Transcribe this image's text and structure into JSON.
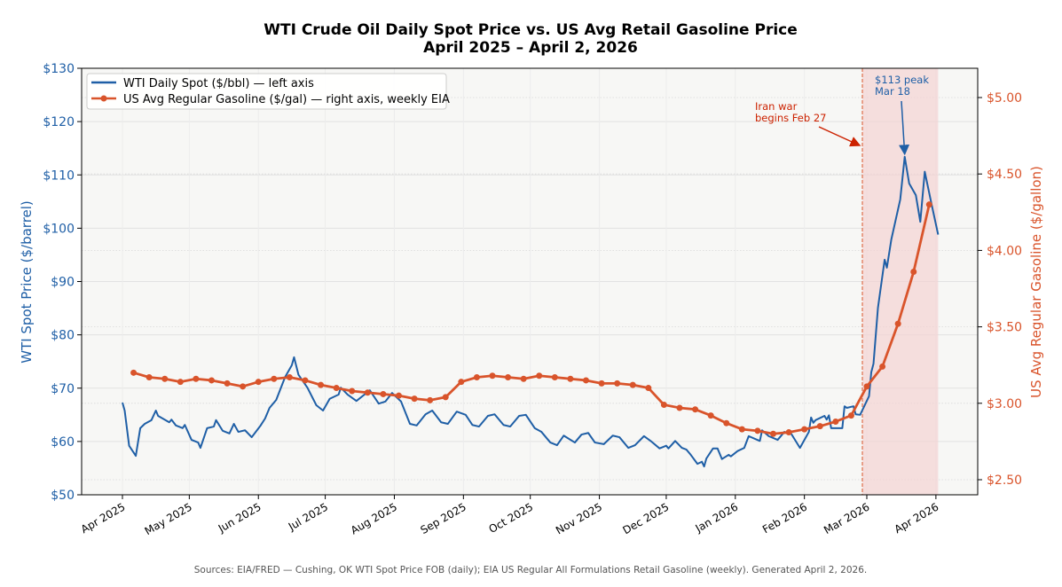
{
  "chart_data": {
    "type": "line",
    "title_line1": "WTI Crude Oil Daily Spot Price vs. US Avg Retail Gasoline Price",
    "title_line2": "April 2025 – April 2, 2026",
    "ylabel_left": "WTI Spot Price ($/barrel)",
    "ylabel_right": "US Avg Regular Gasoline ($/gallon)",
    "ylim_left": [
      50,
      130
    ],
    "ylim_right": [
      2.4,
      5.2
    ],
    "xlim": [
      "2025-03-13",
      "2026-04-20"
    ],
    "grid": true,
    "legend_placement": "top-left",
    "y_ticks_left": [
      {
        "value": 50,
        "label": "$50"
      },
      {
        "value": 60,
        "label": "$60"
      },
      {
        "value": 70,
        "label": "$70"
      },
      {
        "value": 80,
        "label": "$80"
      },
      {
        "value": 90,
        "label": "$90"
      },
      {
        "value": 100,
        "label": "$100"
      },
      {
        "value": 110,
        "label": "$110"
      },
      {
        "value": 120,
        "label": "$120"
      },
      {
        "value": 130,
        "label": "$130"
      }
    ],
    "y_ticks_right": [
      {
        "value": 2.5,
        "label": "$2.50"
      },
      {
        "value": 3.0,
        "label": "$3.00"
      },
      {
        "value": 3.5,
        "label": "$3.50"
      },
      {
        "value": 4.0,
        "label": "$4.00"
      },
      {
        "value": 4.5,
        "label": "$4.50"
      },
      {
        "value": 5.0,
        "label": "$5.00"
      }
    ],
    "x_ticks": [
      {
        "date": "2025-04-01",
        "label": "Apr 2025"
      },
      {
        "date": "2025-05-01",
        "label": "May 2025"
      },
      {
        "date": "2025-06-01",
        "label": "Jun 2025"
      },
      {
        "date": "2025-07-01",
        "label": "Jul 2025"
      },
      {
        "date": "2025-08-01",
        "label": "Aug 2025"
      },
      {
        "date": "2025-09-01",
        "label": "Sep 2025"
      },
      {
        "date": "2025-10-01",
        "label": "Oct 2025"
      },
      {
        "date": "2025-11-01",
        "label": "Nov 2025"
      },
      {
        "date": "2025-12-01",
        "label": "Dec 2025"
      },
      {
        "date": "2026-01-01",
        "label": "Jan 2026"
      },
      {
        "date": "2026-02-01",
        "label": "Feb 2026"
      },
      {
        "date": "2026-03-01",
        "label": "Mar 2026"
      },
      {
        "date": "2026-04-01",
        "label": "Apr 2026"
      }
    ],
    "series": [
      {
        "name": "WTI Daily Spot ($/bbl) — left axis",
        "axis": "left",
        "color": "#1f5fa6",
        "points": [
          [
            "2025-04-01",
            67.3
          ],
          [
            "2025-04-02",
            65.8
          ],
          [
            "2025-04-04",
            59.2
          ],
          [
            "2025-04-07",
            57.3
          ],
          [
            "2025-04-09",
            62.5
          ],
          [
            "2025-04-11",
            63.3
          ],
          [
            "2025-04-14",
            64.0
          ],
          [
            "2025-04-16",
            65.8
          ],
          [
            "2025-04-17",
            64.8
          ],
          [
            "2025-04-22",
            63.6
          ],
          [
            "2025-04-23",
            64.1
          ],
          [
            "2025-04-25",
            63.0
          ],
          [
            "2025-04-28",
            62.5
          ],
          [
            "2025-04-29",
            63.1
          ],
          [
            "2025-05-02",
            60.3
          ],
          [
            "2025-05-05",
            59.8
          ],
          [
            "2025-05-06",
            58.8
          ],
          [
            "2025-05-09",
            62.5
          ],
          [
            "2025-05-12",
            62.8
          ],
          [
            "2025-05-13",
            64.0
          ],
          [
            "2025-05-16",
            62.0
          ],
          [
            "2025-05-19",
            61.5
          ],
          [
            "2025-05-21",
            63.3
          ],
          [
            "2025-05-23",
            61.8
          ],
          [
            "2025-05-26",
            62.1
          ],
          [
            "2025-05-29",
            60.8
          ],
          [
            "2025-06-02",
            63.0
          ],
          [
            "2025-06-04",
            64.3
          ],
          [
            "2025-06-06",
            66.3
          ],
          [
            "2025-06-09",
            67.8
          ],
          [
            "2025-06-13",
            72.1
          ],
          [
            "2025-06-16",
            74.3
          ],
          [
            "2025-06-17",
            75.8
          ],
          [
            "2025-06-19",
            72.5
          ],
          [
            "2025-06-23",
            70.1
          ],
          [
            "2025-06-27",
            66.8
          ],
          [
            "2025-06-30",
            65.8
          ],
          [
            "2025-07-03",
            68.0
          ],
          [
            "2025-07-07",
            68.8
          ],
          [
            "2025-07-08",
            70.1
          ],
          [
            "2025-07-11",
            68.8
          ],
          [
            "2025-07-15",
            67.6
          ],
          [
            "2025-07-21",
            69.6
          ],
          [
            "2025-07-25",
            67.1
          ],
          [
            "2025-07-28",
            67.5
          ],
          [
            "2025-07-31",
            69.1
          ],
          [
            "2025-08-04",
            67.5
          ],
          [
            "2025-08-08",
            63.3
          ],
          [
            "2025-08-11",
            63.0
          ],
          [
            "2025-08-15",
            65.1
          ],
          [
            "2025-08-18",
            65.8
          ],
          [
            "2025-08-22",
            63.6
          ],
          [
            "2025-08-25",
            63.3
          ],
          [
            "2025-08-29",
            65.6
          ],
          [
            "2025-09-02",
            65.0
          ],
          [
            "2025-09-05",
            63.1
          ],
          [
            "2025-09-08",
            62.8
          ],
          [
            "2025-09-12",
            64.8
          ],
          [
            "2025-09-15",
            65.1
          ],
          [
            "2025-09-19",
            63.1
          ],
          [
            "2025-09-22",
            62.8
          ],
          [
            "2025-09-26",
            64.8
          ],
          [
            "2025-09-29",
            65.0
          ],
          [
            "2025-10-03",
            62.5
          ],
          [
            "2025-10-06",
            61.8
          ],
          [
            "2025-10-10",
            59.8
          ],
          [
            "2025-10-13",
            59.3
          ],
          [
            "2025-10-16",
            61.1
          ],
          [
            "2025-10-21",
            59.8
          ],
          [
            "2025-10-24",
            61.3
          ],
          [
            "2025-10-27",
            61.6
          ],
          [
            "2025-10-30",
            59.8
          ],
          [
            "2025-11-03",
            59.5
          ],
          [
            "2025-11-07",
            61.1
          ],
          [
            "2025-11-10",
            60.8
          ],
          [
            "2025-11-14",
            58.8
          ],
          [
            "2025-11-17",
            59.3
          ],
          [
            "2025-11-21",
            61.0
          ],
          [
            "2025-11-24",
            60.1
          ],
          [
            "2025-11-28",
            58.7
          ],
          [
            "2025-12-01",
            59.2
          ],
          [
            "2025-12-02",
            58.7
          ],
          [
            "2025-12-05",
            60.1
          ],
          [
            "2025-12-08",
            58.8
          ],
          [
            "2025-12-10",
            58.5
          ],
          [
            "2025-12-12",
            57.5
          ],
          [
            "2025-12-15",
            55.8
          ],
          [
            "2025-12-17",
            56.2
          ],
          [
            "2025-12-18",
            55.3
          ],
          [
            "2025-12-19",
            56.8
          ],
          [
            "2025-12-22",
            58.7
          ],
          [
            "2025-12-24",
            58.7
          ],
          [
            "2025-12-26",
            56.7
          ],
          [
            "2025-12-29",
            57.5
          ],
          [
            "2025-12-30",
            57.2
          ],
          [
            "2026-01-02",
            58.2
          ],
          [
            "2026-01-05",
            58.8
          ],
          [
            "2026-01-07",
            61.0
          ],
          [
            "2026-01-12",
            60.1
          ],
          [
            "2026-01-13",
            62.1
          ],
          [
            "2026-01-16",
            61.0
          ],
          [
            "2026-01-20",
            60.3
          ],
          [
            "2026-01-23",
            61.8
          ],
          [
            "2026-01-26",
            61.5
          ],
          [
            "2026-01-30",
            58.8
          ],
          [
            "2026-02-03",
            61.8
          ],
          [
            "2026-02-04",
            64.5
          ],
          [
            "2026-02-05",
            63.5
          ],
          [
            "2026-02-06",
            64.0
          ],
          [
            "2026-02-10",
            64.8
          ],
          [
            "2026-02-11",
            64.1
          ],
          [
            "2026-02-12",
            64.9
          ],
          [
            "2026-02-13",
            62.5
          ],
          [
            "2026-02-18",
            62.5
          ],
          [
            "2026-02-19",
            66.6
          ],
          [
            "2026-02-20",
            66.3
          ],
          [
            "2026-02-23",
            66.6
          ],
          [
            "2026-02-24",
            65.1
          ],
          [
            "2026-02-26",
            65.0
          ],
          [
            "2026-03-02",
            68.5
          ],
          [
            "2026-03-03",
            73.0
          ],
          [
            "2026-03-04",
            74.6
          ],
          [
            "2026-03-06",
            85.1
          ],
          [
            "2026-03-09",
            94.1
          ],
          [
            "2026-03-10",
            92.6
          ],
          [
            "2026-03-12",
            97.9
          ],
          [
            "2026-03-16",
            105.4
          ],
          [
            "2026-03-18",
            113.4
          ],
          [
            "2026-03-20",
            108.4
          ],
          [
            "2026-03-23",
            106.2
          ],
          [
            "2026-03-25",
            101.2
          ],
          [
            "2026-03-27",
            110.6
          ],
          [
            "2026-03-30",
            104.6
          ],
          [
            "2026-04-02",
            98.8
          ]
        ]
      },
      {
        "name": "US Avg Regular Gasoline ($/gal) — right axis, weekly EIA",
        "axis": "right",
        "color": "#d9542b",
        "points": [
          [
            "2025-04-06",
            3.2
          ],
          [
            "2025-04-13",
            3.17
          ],
          [
            "2025-04-20",
            3.16
          ],
          [
            "2025-04-27",
            3.14
          ],
          [
            "2025-05-04",
            3.16
          ],
          [
            "2025-05-11",
            3.15
          ],
          [
            "2025-05-18",
            3.13
          ],
          [
            "2025-05-25",
            3.11
          ],
          [
            "2025-06-01",
            3.14
          ],
          [
            "2025-06-08",
            3.16
          ],
          [
            "2025-06-15",
            3.17
          ],
          [
            "2025-06-22",
            3.15
          ],
          [
            "2025-06-29",
            3.12
          ],
          [
            "2025-07-06",
            3.1
          ],
          [
            "2025-07-13",
            3.08
          ],
          [
            "2025-07-20",
            3.07
          ],
          [
            "2025-07-27",
            3.06
          ],
          [
            "2025-08-03",
            3.05
          ],
          [
            "2025-08-10",
            3.03
          ],
          [
            "2025-08-17",
            3.02
          ],
          [
            "2025-08-24",
            3.04
          ],
          [
            "2025-08-31",
            3.14
          ],
          [
            "2025-09-07",
            3.17
          ],
          [
            "2025-09-14",
            3.18
          ],
          [
            "2025-09-21",
            3.17
          ],
          [
            "2025-09-28",
            3.16
          ],
          [
            "2025-10-05",
            3.18
          ],
          [
            "2025-10-12",
            3.17
          ],
          [
            "2025-10-19",
            3.16
          ],
          [
            "2025-10-26",
            3.15
          ],
          [
            "2025-11-02",
            3.13
          ],
          [
            "2025-11-09",
            3.13
          ],
          [
            "2025-11-16",
            3.12
          ],
          [
            "2025-11-23",
            3.1
          ],
          [
            "2025-11-30",
            2.99
          ],
          [
            "2025-12-07",
            2.97
          ],
          [
            "2025-12-14",
            2.96
          ],
          [
            "2025-12-21",
            2.92
          ],
          [
            "2025-12-28",
            2.87
          ],
          [
            "2026-01-04",
            2.83
          ],
          [
            "2026-01-11",
            2.82
          ],
          [
            "2026-01-18",
            2.8
          ],
          [
            "2026-01-25",
            2.81
          ],
          [
            "2026-02-01",
            2.83
          ],
          [
            "2026-02-08",
            2.85
          ],
          [
            "2026-02-15",
            2.88
          ],
          [
            "2026-02-22",
            2.92
          ],
          [
            "2026-03-01",
            3.11
          ],
          [
            "2026-03-08",
            3.24
          ],
          [
            "2026-03-15",
            3.52
          ],
          [
            "2026-03-22",
            3.86
          ],
          [
            "2026-03-29",
            4.3
          ]
        ]
      }
    ],
    "shaded_region": {
      "start": "2026-02-27",
      "end": "2026-04-02",
      "color": "#f3d3d3"
    },
    "annotations": [
      {
        "id": "war",
        "text_line1": "Iran war",
        "text_line2": "begins Feb 27",
        "color": "#cc2200",
        "target_date": "2026-02-27",
        "target_value": 115.5,
        "axis": "left"
      },
      {
        "id": "peak",
        "text_line1": "$113 peak",
        "text_line2": "Mar 18",
        "color": "#1f5fa6",
        "target_date": "2026-03-18",
        "target_value": 113.4,
        "axis": "left"
      }
    ],
    "footer": "Sources: EIA/FRED — Cushing, OK WTI Spot Price FOB (daily); EIA US Regular All Formulations Retail Gasoline (weekly). Generated April 2, 2026."
  }
}
